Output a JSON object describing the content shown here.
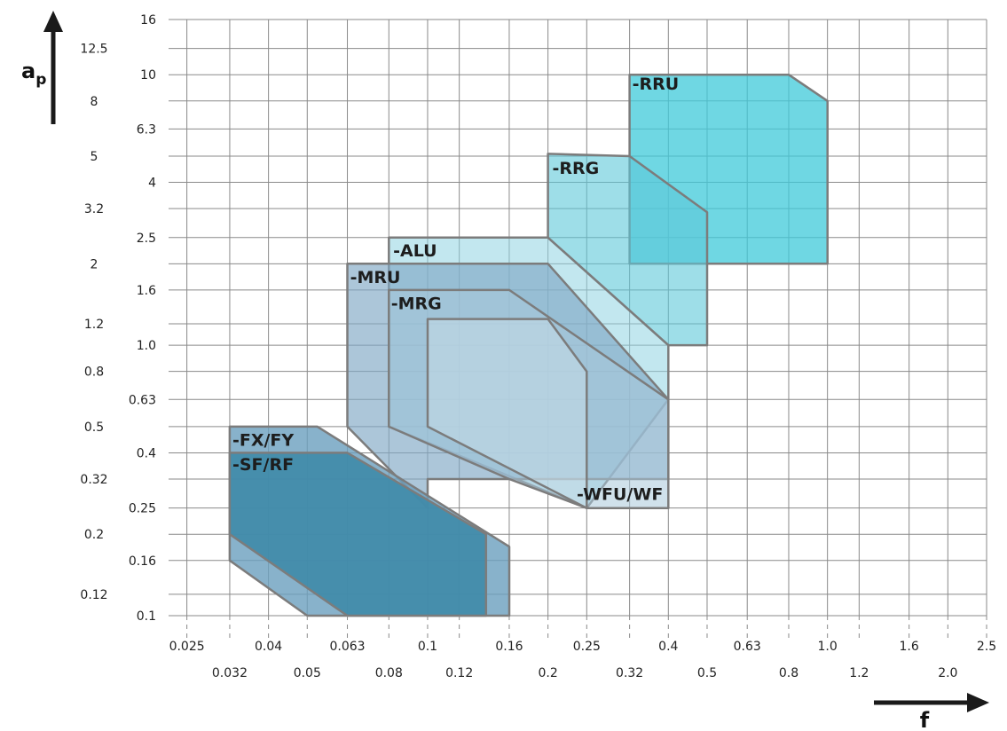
{
  "chart_data": {
    "type": "area",
    "title": "",
    "xlabel": "f",
    "ylabel": "a",
    "ylabel_subscript": "p",
    "x_scale": "log",
    "y_scale": "log",
    "grid": true,
    "legend": "none",
    "xlim": [
      0.0225,
      2.5
    ],
    "ylim": [
      0.1,
      16
    ],
    "x_ticks_top_row": [
      "0.025",
      "0.04",
      "0.063",
      "0.1",
      "0.16",
      "0.25",
      "0.4",
      "0.63",
      "1.0",
      "1.6",
      "2.5"
    ],
    "x_ticks_bottom_row": [
      "0.032",
      "0.05",
      "0.08",
      "0.12",
      "0.2",
      "0.32",
      "0.5",
      "0.8",
      "1.2",
      "2.0"
    ],
    "y_ticks_right": [
      "16",
      "10",
      "6.3",
      "4",
      "2.5",
      "1.6",
      "1.0",
      "0.63",
      "0.4",
      "0.25",
      "0.16",
      "0.1"
    ],
    "y_ticks_left": [
      "12.5",
      "8",
      "5",
      "3.2",
      "2",
      "1.2",
      "0.8",
      "0.5",
      "0.32",
      "0.2",
      "0.12"
    ],
    "series": [
      {
        "name": "-RRU",
        "color": "#3fc9d9",
        "opacity": 0.75,
        "points": [
          [
            0.32,
            10
          ],
          [
            0.8,
            10
          ],
          [
            1.0,
            8
          ],
          [
            1.0,
            2
          ],
          [
            0.32,
            2
          ]
        ]
      },
      {
        "name": "-RRG",
        "color": "#5ec8d8",
        "opacity": 0.6,
        "points": [
          [
            0.2,
            5.1
          ],
          [
            0.32,
            5
          ],
          [
            0.5,
            3.1
          ],
          [
            0.5,
            1.0
          ],
          [
            0.4,
            1.0
          ],
          [
            0.2,
            2.5
          ]
        ]
      },
      {
        "name": "-ALU",
        "color": "#8fd4e1",
        "opacity": 0.55,
        "points": [
          [
            0.08,
            2.5
          ],
          [
            0.2,
            2.5
          ],
          [
            0.4,
            1.0
          ],
          [
            0.4,
            0.63
          ],
          [
            0.25,
            0.25
          ],
          [
            0.08,
            0.5
          ]
        ]
      },
      {
        "name": "-MRU",
        "color": "#7fa8c4",
        "opacity": 0.65,
        "points": [
          [
            0.063,
            2
          ],
          [
            0.1,
            2
          ],
          [
            0.2,
            2
          ],
          [
            0.4,
            0.63
          ],
          [
            0.4,
            0.32
          ],
          [
            0.1,
            0.32
          ],
          [
            0.1,
            0.25
          ],
          [
            0.063,
            0.5
          ]
        ]
      },
      {
        "name": "-MRG",
        "color": "#a9c8da",
        "opacity": 0.55,
        "points": [
          [
            0.08,
            1.6
          ],
          [
            0.16,
            1.6
          ],
          [
            0.4,
            0.63
          ],
          [
            0.4,
            0.25
          ],
          [
            0.25,
            0.25
          ],
          [
            0.16,
            0.32
          ],
          [
            0.08,
            0.5
          ]
        ]
      },
      {
        "name": "-WFU/WF",
        "color": "#cfe3ec",
        "opacity": 0.45,
        "points": [
          [
            0.1,
            1.25
          ],
          [
            0.2,
            1.25
          ],
          [
            0.25,
            0.8
          ],
          [
            0.25,
            0.25
          ],
          [
            0.1,
            0.5
          ]
        ]
      },
      {
        "name": "-FX/FY",
        "color": "#6a9fbe",
        "opacity": 0.8,
        "points": [
          [
            0.032,
            0.5
          ],
          [
            0.053,
            0.5
          ],
          [
            0.16,
            0.18
          ],
          [
            0.16,
            0.1
          ],
          [
            0.05,
            0.1
          ],
          [
            0.032,
            0.16
          ]
        ]
      },
      {
        "name": "-SF/RF",
        "color": "#3f8aa9",
        "opacity": 0.9,
        "points": [
          [
            0.032,
            0.4
          ],
          [
            0.063,
            0.4
          ],
          [
            0.14,
            0.2
          ],
          [
            0.14,
            0.1
          ],
          [
            0.063,
            0.1
          ],
          [
            0.032,
            0.2
          ]
        ]
      }
    ]
  }
}
